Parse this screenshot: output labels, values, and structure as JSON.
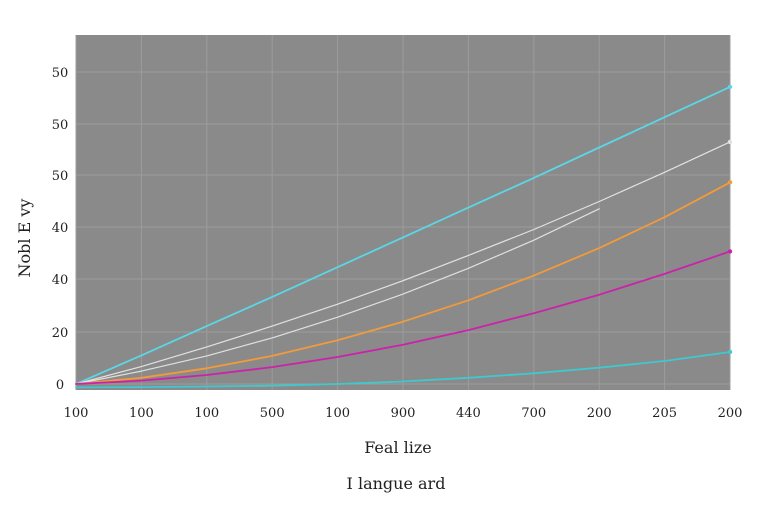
{
  "chart_data": {
    "type": "line",
    "xlabel": "Feal lize",
    "ylabel": "Nobl E vy",
    "caption": "I langue ard",
    "x_tick_labels": [
      "100",
      "100",
      "100",
      "500",
      "100",
      "900",
      "440",
      "700",
      "200",
      "205",
      "200"
    ],
    "y_tick_labels": [
      "0",
      "20",
      "40",
      "40",
      "50",
      "50",
      "50"
    ],
    "x": [
      0,
      1,
      2,
      3,
      4,
      5,
      6,
      7,
      8,
      9,
      10
    ],
    "xlim": [
      0,
      10
    ],
    "ylim": [
      0,
      60
    ],
    "grid": true,
    "legend": "none",
    "plot_background": "#8a8a8a",
    "series": [
      {
        "color": "#5ad7e6",
        "values": [
          0,
          5.1,
          10.3,
          15.5,
          20.8,
          26.1,
          31.4,
          36.7,
          42.1,
          47.5,
          52.9
        ]
      },
      {
        "color": "#e2e2e2",
        "values": [
          0,
          3.1,
          6.6,
          10.3,
          14.2,
          18.4,
          22.9,
          27.5,
          32.5,
          37.7,
          43.1
        ]
      },
      {
        "color": "#e0e0e0",
        "values": [
          0,
          2.3,
          5.0,
          8.2,
          11.9,
          16.0,
          20.6,
          25.6,
          31.2,
          null,
          null
        ]
      },
      {
        "color": "#f39a3a",
        "values": [
          0,
          1.1,
          2.8,
          5.0,
          7.8,
          11.1,
          14.9,
          19.3,
          24.2,
          29.7,
          35.9
        ]
      },
      {
        "color": "#cc22aa",
        "values": [
          0,
          0.6,
          1.6,
          3.0,
          4.8,
          7.0,
          9.6,
          12.6,
          15.9,
          19.6,
          23.6
        ]
      },
      {
        "color": "#3fc9cf",
        "values": [
          -0.6,
          -0.55,
          -0.45,
          -0.3,
          0.0,
          0.45,
          1.1,
          1.9,
          2.9,
          4.1,
          5.7
        ]
      }
    ]
  }
}
